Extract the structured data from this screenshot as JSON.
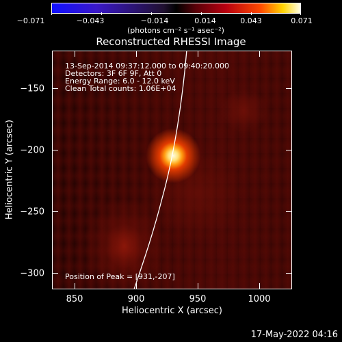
{
  "colorbar": {
    "ticks": [
      "−0.071",
      "−0.043",
      "−0.014",
      "0.014",
      "0.043",
      "0.071"
    ],
    "unit": "(photons cm⁻² s⁻¹ asec⁻²)"
  },
  "title": "Reconstructed RHESSI Image",
  "info": {
    "time": "13-Sep-2014 09:37:12.000 to 09:40:20.000",
    "detectors": "Detectors: 3F 6F 9F, Att 0",
    "energy": "Energy Range: 6.0 - 12.0 keV",
    "clean": "Clean    Total counts: 1.06E+04",
    "peak": "Position of Peak = [931,-207]"
  },
  "axes": {
    "xlabel": "Heliocentric X (arcsec)",
    "ylabel": "Heliocentric Y (arcsec)",
    "xticks": [
      "850",
      "900",
      "950",
      "1000"
    ],
    "yticks": [
      "−150",
      "−200",
      "−250",
      "−300"
    ]
  },
  "footer": "17-May-2022 04:16",
  "colors": {
    "peak_core": "#fffbe0",
    "peak_glow": "#ff9a10",
    "background": "#000000",
    "limb_line": "#ffffff"
  }
}
